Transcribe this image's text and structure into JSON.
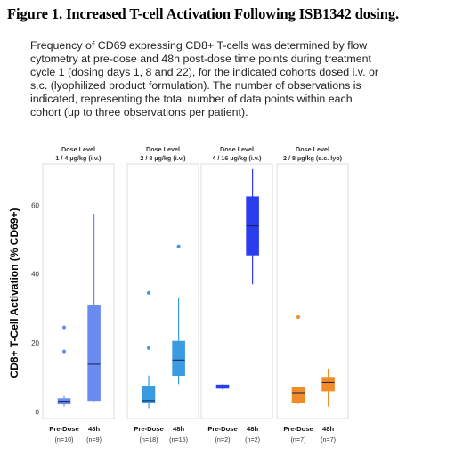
{
  "figure": {
    "title": "Figure 1. Increased T-cell Activation Following ISB1342 dosing.",
    "caption_lines": [
      "Frequency of CD69 expressing CD8+ T-cells was determined by flow",
      "cytometry at pre-dose and 48h post-dose time points during treatment",
      "cycle 1 (dosing days 1, 8 and 22), for the indicated cohorts dosed i.v. or",
      "s.c. (lyophilized product formulation). The number of observations is",
      "indicated, representing the total number of data points within each",
      "cohort (up to three observations per patient)."
    ]
  },
  "chart_data": {
    "type": "box",
    "ylabel": "CD8+ T-Cell Activation (% CD69+)",
    "ylim": [
      -2,
      72
    ],
    "yticks": [
      0,
      20,
      40,
      60
    ],
    "grid": false,
    "panels": [
      {
        "title_line1": "Dose Level",
        "title_line2": "1 / 4 µg/kg (i.v.)",
        "color": "#6a8cf0",
        "groups": [
          {
            "label": "Pre-Dose",
            "n": "(n=10)",
            "whisker_low": 1.5,
            "q1": 2.2,
            "median": 3.0,
            "q3": 3.8,
            "whisker_high": 4.5,
            "outliers": [
              17.5,
              24.5
            ]
          },
          {
            "label": "48h",
            "n": "(n=9)",
            "whisker_low": 3.0,
            "q1": 3.2,
            "median": 13.8,
            "q3": 31.0,
            "whisker_high": 57.5,
            "outliers": []
          }
        ]
      },
      {
        "title_line1": "Dose Level",
        "title_line2": "2 / 8 µg/kg (i.v.)",
        "color": "#3a9be3",
        "groups": [
          {
            "label": "Pre-Dose",
            "n": "(n=18)",
            "whisker_low": 1.0,
            "q1": 2.5,
            "median": 3.2,
            "q3": 7.5,
            "whisker_high": 10.5,
            "outliers": [
              18.5,
              34.5
            ]
          },
          {
            "label": "48h",
            "n": "(n=15)",
            "whisker_low": 8.0,
            "q1": 10.5,
            "median": 15.0,
            "q3": 20.5,
            "whisker_high": 33.0,
            "outliers": [
              48.0
            ]
          }
        ]
      },
      {
        "title_line1": "Dose Level",
        "title_line2": "4 / 16 µg/kg (i.v.)",
        "color": "#2a3ef0",
        "groups": [
          {
            "label": "Pre-Dose",
            "n": "(n=2)",
            "whisker_low": 6.5,
            "q1": 6.8,
            "median": 7.2,
            "q3": 7.8,
            "whisker_high": 8.0,
            "outliers": []
          },
          {
            "label": "48h",
            "n": "(n=2)",
            "whisker_low": 37.0,
            "q1": 45.5,
            "median": 54.0,
            "q3": 62.5,
            "whisker_high": 70.5,
            "outliers": []
          }
        ]
      },
      {
        "title_line1": "Dose Level",
        "title_line2": "2 / 8 µg/kg (s.c. lyo)",
        "color": "#f28c28",
        "groups": [
          {
            "label": "Pre-Dose",
            "n": "(n=7)",
            "whisker_low": 2.2,
            "q1": 2.5,
            "median": 5.5,
            "q3": 7.0,
            "whisker_high": 7.0,
            "outliers": [
              27.5
            ]
          },
          {
            "label": "48h",
            "n": "(n=7)",
            "whisker_low": 1.5,
            "q1": 6.0,
            "median": 8.5,
            "q3": 10.0,
            "whisker_high": 12.5,
            "outliers": []
          }
        ]
      }
    ]
  }
}
